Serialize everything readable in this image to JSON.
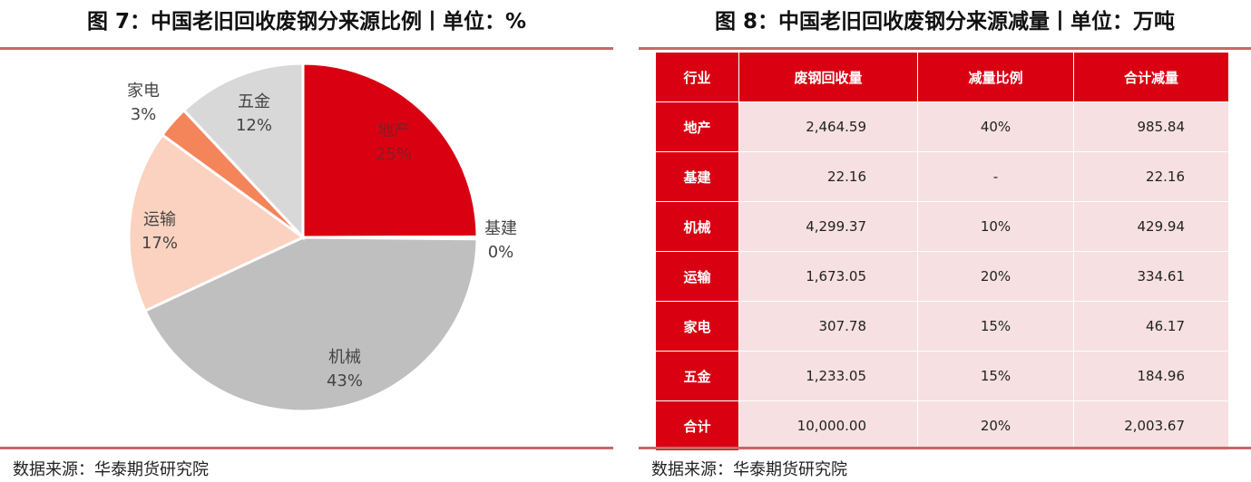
{
  "left": {
    "title": "图 7：中国老旧回收废钢分来源比例丨单位：%",
    "source": "数据来源：华泰期货研究院"
  },
  "right": {
    "title": "图 8：中国老旧回收废钢分来源减量丨单位：万吨",
    "source": "数据来源：华泰期货研究院"
  },
  "chart_data": [
    {
      "type": "pie",
      "title": "图 7：中国老旧回收废钢分来源比例丨单位：%",
      "slices": [
        {
          "label": "地产",
          "value": 25,
          "display": "25%",
          "color": "#d90012"
        },
        {
          "label": "基建",
          "value": 0.2,
          "display": "0%",
          "color": "#b0b0b0"
        },
        {
          "label": "机械",
          "value": 43,
          "display": "43%",
          "color": "#bfbfbf"
        },
        {
          "label": "运输",
          "value": 17,
          "display": "17%",
          "color": "#fbd2c0"
        },
        {
          "label": "家电",
          "value": 3,
          "display": "3%",
          "color": "#f4845a"
        },
        {
          "label": "五金",
          "value": 12,
          "display": "12%",
          "color": "#d8d8d8"
        }
      ]
    },
    {
      "type": "table",
      "title": "图 8：中国老旧回收废钢分来源减量丨单位：万吨",
      "columns": [
        "行业",
        "废钢回收量",
        "减量比例",
        "合计减量"
      ],
      "rows": [
        {
          "industry": "地产",
          "recovery": "2,464.59",
          "ratio": "40%",
          "reduction": "985.84"
        },
        {
          "industry": "基建",
          "recovery": "22.16",
          "ratio": "-",
          "reduction": "22.16"
        },
        {
          "industry": "机械",
          "recovery": "4,299.37",
          "ratio": "10%",
          "reduction": "429.94"
        },
        {
          "industry": "运输",
          "recovery": "1,673.05",
          "ratio": "20%",
          "reduction": "334.61"
        },
        {
          "industry": "家电",
          "recovery": "307.78",
          "ratio": "15%",
          "reduction": "46.17"
        },
        {
          "industry": "五金",
          "recovery": "1,233.05",
          "ratio": "15%",
          "reduction": "184.96"
        },
        {
          "industry": "合计",
          "recovery": "10,000.00",
          "ratio": "20%",
          "reduction": "2,003.67"
        }
      ]
    }
  ]
}
